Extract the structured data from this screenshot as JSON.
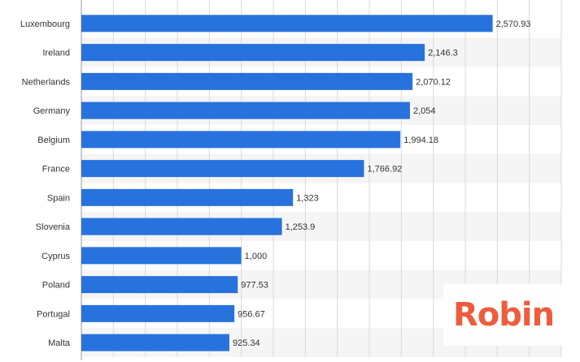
{
  "chart_data": {
    "type": "bar",
    "orientation": "horizontal",
    "categories": [
      "Luxembourg",
      "Ireland",
      "Netherlands",
      "Germany",
      "Belgium",
      "France",
      "Spain",
      "Slovenia",
      "Cyprus",
      "Poland",
      "Portugal",
      "Malta"
    ],
    "values": [
      2570.93,
      2146.3,
      2070.12,
      2054,
      1994.18,
      1766.92,
      1323,
      1253.9,
      1000,
      977.53,
      956.67,
      925.34
    ],
    "value_labels": [
      "2,570.93",
      "2,146.3",
      "2,070.12",
      "2,054",
      "1,994.18",
      "1,766.92",
      "1,323",
      "1,253.9",
      "1,000",
      "977.53",
      "956.67",
      "925.34"
    ],
    "xlim": [
      0,
      3000
    ],
    "grid": true,
    "title": "",
    "xlabel": "",
    "ylabel": ""
  },
  "colors": {
    "bar": "#2872dd",
    "grid": "#d9d9d9",
    "band": "#f5f5f5",
    "watermark": "#ee5737"
  },
  "watermark": {
    "text": "Robin"
  }
}
